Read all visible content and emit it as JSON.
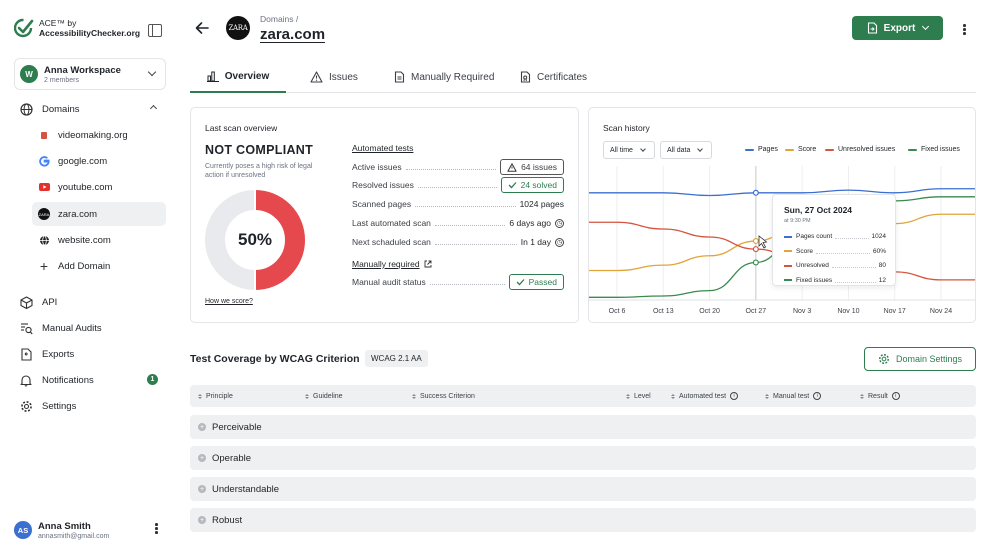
{
  "app": {
    "logo_line1": "ACE™ by",
    "logo_line2": "AccessibilityChecker.org"
  },
  "workspace": {
    "initial": "W",
    "name": "Anna Workspace",
    "members": "2 members"
  },
  "sidebar": {
    "domains_label": "Domains",
    "domain_items": [
      {
        "label": "videomaking.org"
      },
      {
        "label": "google.com"
      },
      {
        "label": "youtube.com"
      },
      {
        "label": "zara.com"
      },
      {
        "label": "website.com"
      }
    ],
    "add_domain": "Add Domain",
    "items": [
      {
        "label": "API"
      },
      {
        "label": "Manual Audits"
      },
      {
        "label": "Exports"
      },
      {
        "label": "Notifications",
        "badge": "1"
      },
      {
        "label": "Settings"
      }
    ]
  },
  "user": {
    "initials": "AS",
    "name": "Anna Smith",
    "email": "annasmith@gmail.com"
  },
  "header": {
    "breadcrumb": "Domains  /",
    "title": "zara.com",
    "domain_logo": "ZARA",
    "export_label": "Export"
  },
  "tabs": [
    {
      "label": "Overview"
    },
    {
      "label": "Issues"
    },
    {
      "label": "Manually Required"
    },
    {
      "label": "Certificates"
    }
  ],
  "overview": {
    "title": "Last scan overview",
    "status": "NOT COMPLIANT",
    "status_desc": "Currently poses a high risk of legal action if unresolved",
    "score": "50%",
    "score_fraction": 0.5,
    "how_link": "How we score?",
    "automated_title": "Automated tests",
    "rows": [
      {
        "label": "Active issues",
        "value": "64 issues"
      },
      {
        "label": "Resolved issues",
        "value": "24 solved"
      },
      {
        "label": "Scanned pages",
        "value": "1024 pages"
      },
      {
        "label": "Last automated scan",
        "value": "6 days ago"
      },
      {
        "label": "Next schaduled scan",
        "value": "In 1 day"
      }
    ],
    "manual_title": "Manually required",
    "manual_status_label": "Manual audit status",
    "manual_status_value": "Passed",
    "colors": {
      "red": "#e5484d",
      "track": "#e8eaed",
      "green": "#2e7d4f"
    }
  },
  "scan_history": {
    "title": "Scan history",
    "time_select": "All time",
    "data_select": "All data",
    "tooltip": {
      "date": "Sun, 27 Oct 2024",
      "time": "at 9:30 PM",
      "rows": [
        {
          "label": "Pages count",
          "value": "1024"
        },
        {
          "label": "Score",
          "value": "60%"
        },
        {
          "label": "Unresolved",
          "value": "80"
        },
        {
          "label": "Fixed issues",
          "value": "12"
        }
      ]
    }
  },
  "chart_data": {
    "type": "line",
    "x": [
      "Oct 6",
      "Oct 13",
      "Oct 20",
      "Oct 27",
      "Nov 3",
      "Nov 10",
      "Nov 17",
      "Nov 24"
    ],
    "series": [
      {
        "name": "Pages",
        "color": "#3b6fd0",
        "values": [
          80,
          80,
          78,
          80,
          80,
          82,
          80,
          83
        ]
      },
      {
        "name": "Score",
        "color": "#e0a43a",
        "values": [
          22,
          26,
          33,
          44,
          56,
          54,
          57,
          64
        ]
      },
      {
        "name": "Unresolved issues",
        "color": "#d5533f",
        "values": [
          58,
          53,
          47,
          38,
          30,
          25,
          21,
          15
        ]
      },
      {
        "name": "Fixed issues",
        "color": "#3a8a4e",
        "values": [
          2,
          3,
          7,
          28,
          50,
          63,
          74,
          77
        ]
      }
    ],
    "ylim": [
      0,
      100
    ],
    "grid": true,
    "legend": "top-right"
  },
  "coverage": {
    "title": "Test Coverage by WCAG Criterion",
    "badge": "WCAG 2.1 AA",
    "settings_button": "Domain Settings",
    "columns": [
      {
        "label": "Principle"
      },
      {
        "label": "Guideline"
      },
      {
        "label": "Success Criterion"
      },
      {
        "label": "Level"
      },
      {
        "label": "Automated test"
      },
      {
        "label": "Manual test"
      },
      {
        "label": "Result"
      }
    ],
    "groups": [
      {
        "label": "Perceivable"
      },
      {
        "label": "Operable"
      },
      {
        "label": "Understandable"
      },
      {
        "label": "Robust"
      }
    ]
  }
}
